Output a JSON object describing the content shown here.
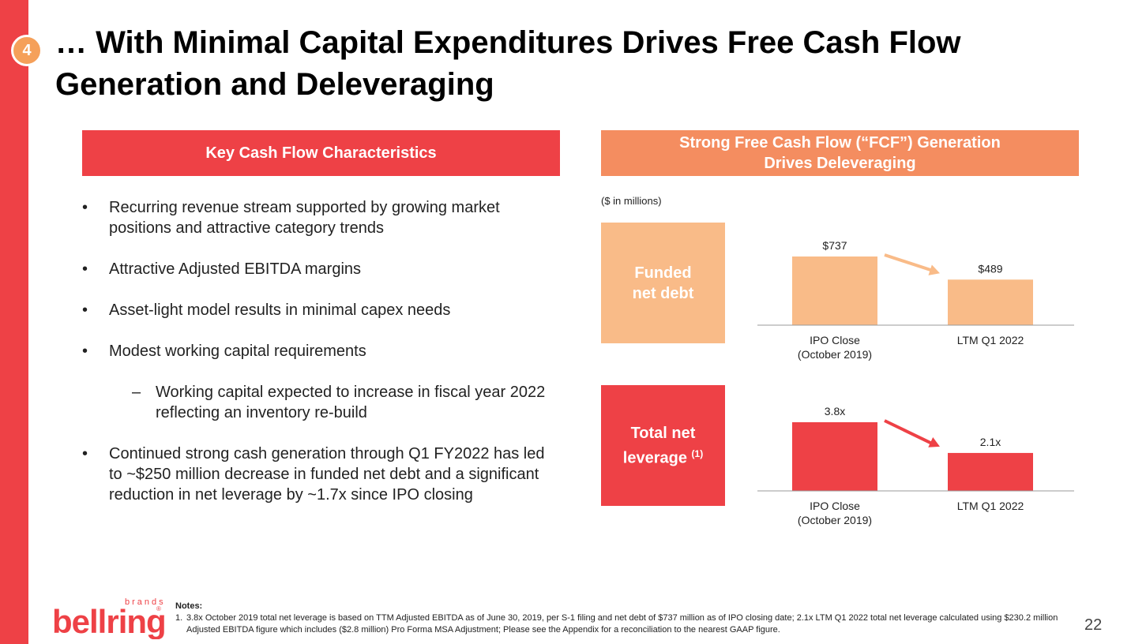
{
  "slide": {
    "number_badge": "4",
    "title": "… With Minimal Capital Expenditures Drives Free Cash Flow Generation and Deleveraging",
    "page_number": "22",
    "colors": {
      "red": "#ee4146",
      "orange": "#f48d60",
      "peach": "#f9bb88"
    }
  },
  "left": {
    "header": "Key Cash Flow Characteristics",
    "bullets": [
      {
        "marker": "•",
        "text": "Recurring revenue stream supported by growing market positions and attractive category trends"
      },
      {
        "marker": "•",
        "text": "Attractive Adjusted EBITDA margins"
      },
      {
        "marker": "•",
        "text": "Asset-light model results in minimal capex needs"
      },
      {
        "marker": "•",
        "text": "Modest working capital requirements"
      }
    ],
    "sub_bullet": {
      "marker": "–",
      "text": "Working capital expected to increase in fiscal year 2022 reflecting an inventory re-build"
    },
    "last_bullet": {
      "marker": "•",
      "text": "Continued strong cash generation through Q1 FY2022 has led to ~$250 million decrease in funded net debt and a significant reduction in net leverage by ~1.7x since IPO closing"
    }
  },
  "right": {
    "header_line1": "Strong Free Cash Flow (“FCF”) Generation",
    "header_line2": "Drives Deleveraging",
    "units": "($ in millions)",
    "funded_label_line1": "Funded",
    "funded_label_line2": "net debt",
    "leverage_label_line1": "Total net",
    "leverage_label_line2": "leverage",
    "leverage_footnote": "(1)"
  },
  "chart_data": [
    {
      "type": "bar",
      "categories": [
        "IPO Close\n(October 2019)",
        "LTM Q1 2022"
      ],
      "values": [
        737,
        489
      ],
      "data_labels": [
        "$737",
        "$489"
      ],
      "color": "#f9bb88",
      "arrow_color": "#f9bb88"
    },
    {
      "type": "bar",
      "categories": [
        "IPO Close\n(October 2019)",
        "LTM Q1 2022"
      ],
      "values": [
        3.8,
        2.1
      ],
      "data_labels": [
        "3.8x",
        "2.1x"
      ],
      "color": "#ee4146",
      "arrow_color": "#ee4146"
    }
  ],
  "notes": {
    "heading": "Notes:",
    "items": [
      {
        "num": "1.",
        "text": "3.8x October 2019 total net leverage is based on TTM Adjusted EBITDA as of June 30, 2019, per S-1 filing and net debt of $737 million as of IPO closing date; 2.1x LTM Q1 2022 total net leverage calculated using $230.2 million Adjusted EBITDA figure which includes ($2.8 million) Pro Forma MSA Adjustment; Please see the Appendix for a reconciliation to the nearest GAAP figure."
      }
    ]
  },
  "logo": {
    "brands": "brands",
    "name": "bellring",
    "reg": "®"
  }
}
